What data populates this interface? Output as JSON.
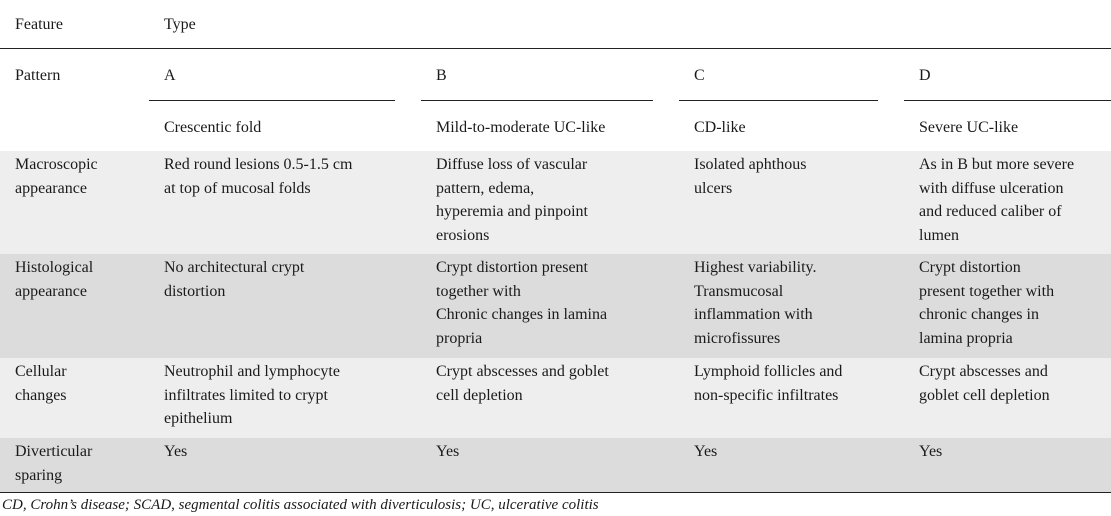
{
  "table": {
    "header": {
      "feature_label": "Feature",
      "type_label": "Type",
      "pattern_label": "Pattern",
      "pattern_letters": [
        "A",
        "B",
        "C",
        "D"
      ],
      "pattern_names": [
        "Crescentic fold",
        "Mild-to-moderate UC-like",
        "CD-like",
        "Severe UC-like"
      ]
    },
    "rows": [
      {
        "feature": [
          "Macroscopic",
          "appearance"
        ],
        "cells": [
          [
            "Red round lesions 0.5-1.5 cm",
            "at top of mucosal folds"
          ],
          [
            "Diffuse loss of vascular",
            "pattern, edema,",
            "hyperemia and pinpoint",
            "erosions"
          ],
          [
            "Isolated aphthous",
            "ulcers"
          ],
          [
            "As in B but more severe",
            "with diffuse ulceration",
            "and reduced caliber of",
            "lumen"
          ]
        ]
      },
      {
        "feature": [
          "Histological",
          "appearance"
        ],
        "cells": [
          [
            "No architectural crypt",
            "distortion"
          ],
          [
            "Crypt distortion present",
            "together with",
            "Chronic changes in lamina",
            "propria"
          ],
          [
            "Highest variability.",
            "Transmucosal",
            "inflammation with",
            "microfissures"
          ],
          [
            "Crypt distortion",
            "present together with",
            "chronic changes in",
            "lamina propria"
          ]
        ]
      },
      {
        "feature": [
          "Cellular",
          "changes"
        ],
        "cells": [
          [
            "Neutrophil and lymphocyte",
            "infiltrates limited to crypt",
            "epithelium"
          ],
          [
            "Crypt abscesses and goblet",
            "cell depletion"
          ],
          [
            "Lymphoid follicles and",
            "non-specific infiltrates"
          ],
          [
            "Crypt abscesses and",
            "goblet cell depletion"
          ]
        ]
      },
      {
        "feature": [
          "Diverticular",
          "sparing"
        ],
        "cells": [
          [
            "Yes"
          ],
          [
            "Yes"
          ],
          [
            "Yes"
          ],
          [
            "Yes"
          ]
        ]
      }
    ]
  },
  "footnote": "CD, Crohn’s disease; SCAD, segmental colitis associated with diverticulosis; UC, ulcerative colitis"
}
